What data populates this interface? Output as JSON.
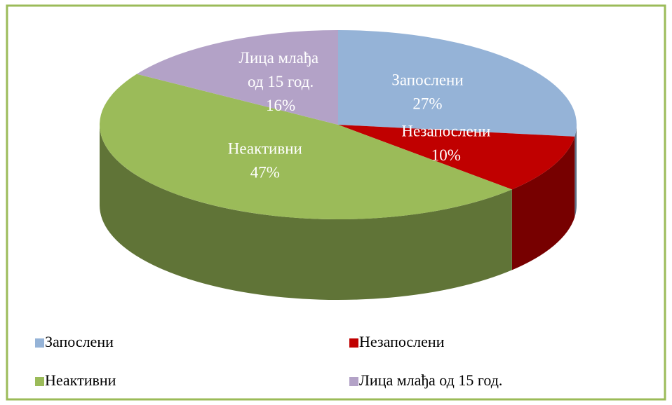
{
  "chart_data": {
    "type": "pie3d",
    "categories": [
      "Запослени",
      "Незапослени",
      "Неактивни",
      "Лица млађа од 15 год."
    ],
    "values": [
      27,
      10,
      47,
      16
    ],
    "value_labels": [
      "27%",
      "10%",
      "47%",
      "16%"
    ],
    "colors": [
      "#95b3d7",
      "#c00000",
      "#9bbb59",
      "#b3a2c7"
    ],
    "legend": "bottom"
  }
}
